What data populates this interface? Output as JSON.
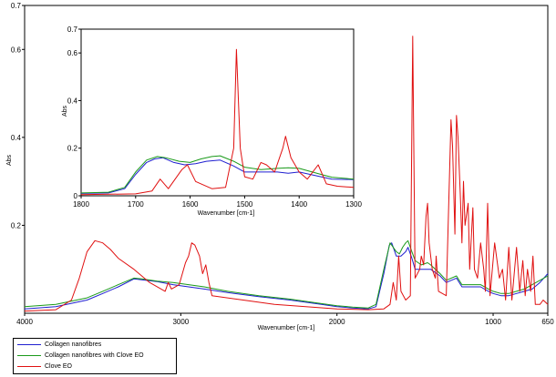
{
  "chart_data": [
    {
      "id": "main",
      "type": "line",
      "xlabel": "Wavenumber [cm-1]",
      "ylabel": "Abs",
      "xlim": [
        4000,
        650
      ],
      "ylim": [
        0,
        0.7
      ],
      "x_ticks": [
        4000,
        3000,
        2000,
        1000,
        650
      ],
      "y_ticks": [
        0.2,
        0.4,
        0.6,
        0.7
      ],
      "series": [
        {
          "name": "Collagen nanofibres",
          "color": "#1f1fd0",
          "points": [
            [
              4000,
              0.01
            ],
            [
              3800,
              0.015
            ],
            [
              3600,
              0.03
            ],
            [
              3500,
              0.045
            ],
            [
              3400,
              0.06
            ],
            [
              3300,
              0.078
            ],
            [
              3250,
              0.076
            ],
            [
              3150,
              0.072
            ],
            [
              3050,
              0.065
            ],
            [
              2950,
              0.06
            ],
            [
              2850,
              0.055
            ],
            [
              2700,
              0.047
            ],
            [
              2500,
              0.038
            ],
            [
              2300,
              0.03
            ],
            [
              2100,
              0.02
            ],
            [
              2000,
              0.015
            ],
            [
              1900,
              0.012
            ],
            [
              1800,
              0.01
            ],
            [
              1750,
              0.015
            ],
            [
              1700,
              0.09
            ],
            [
              1665,
              0.155
            ],
            [
              1650,
              0.16
            ],
            [
              1620,
              0.13
            ],
            [
              1590,
              0.13
            ],
            [
              1560,
              0.14
            ],
            [
              1545,
              0.15
            ],
            [
              1520,
              0.125
            ],
            [
              1500,
              0.1
            ],
            [
              1460,
              0.1
            ],
            [
              1400,
              0.1
            ],
            [
              1340,
              0.085
            ],
            [
              1300,
              0.07
            ],
            [
              1235,
              0.08
            ],
            [
              1200,
              0.06
            ],
            [
              1080,
              0.06
            ],
            [
              1030,
              0.05
            ],
            [
              1000,
              0.045
            ],
            [
              950,
              0.04
            ],
            [
              900,
              0.04
            ],
            [
              850,
              0.045
            ],
            [
              800,
              0.05
            ],
            [
              750,
              0.055
            ],
            [
              700,
              0.07
            ],
            [
              650,
              0.09
            ]
          ]
        },
        {
          "name": "Collagen nanofibres with Clove EO",
          "color": "#1a9a1a",
          "points": [
            [
              4000,
              0.015
            ],
            [
              3800,
              0.02
            ],
            [
              3600,
              0.035
            ],
            [
              3500,
              0.05
            ],
            [
              3400,
              0.065
            ],
            [
              3300,
              0.08
            ],
            [
              3250,
              0.078
            ],
            [
              3150,
              0.073
            ],
            [
              3050,
              0.07
            ],
            [
              2950,
              0.065
            ],
            [
              2850,
              0.06
            ],
            [
              2700,
              0.05
            ],
            [
              2500,
              0.04
            ],
            [
              2300,
              0.032
            ],
            [
              2100,
              0.022
            ],
            [
              2000,
              0.017
            ],
            [
              1900,
              0.014
            ],
            [
              1800,
              0.012
            ],
            [
              1750,
              0.02
            ],
            [
              1700,
              0.1
            ],
            [
              1660,
              0.16
            ],
            [
              1650,
              0.155
            ],
            [
              1620,
              0.14
            ],
            [
              1600,
              0.135
            ],
            [
              1580,
              0.15
            ],
            [
              1560,
              0.16
            ],
            [
              1545,
              0.165
            ],
            [
              1520,
              0.14
            ],
            [
              1500,
              0.12
            ],
            [
              1460,
              0.11
            ],
            [
              1420,
              0.115
            ],
            [
              1400,
              0.11
            ],
            [
              1340,
              0.09
            ],
            [
              1300,
              0.075
            ],
            [
              1235,
              0.085
            ],
            [
              1200,
              0.065
            ],
            [
              1080,
              0.065
            ],
            [
              1030,
              0.055
            ],
            [
              1000,
              0.05
            ],
            [
              950,
              0.045
            ],
            [
              900,
              0.045
            ],
            [
              850,
              0.05
            ],
            [
              800,
              0.055
            ],
            [
              750,
              0.065
            ],
            [
              700,
              0.075
            ],
            [
              650,
              0.085
            ]
          ]
        },
        {
          "name": "Clove EO",
          "color": "#e01010",
          "points": [
            [
              4000,
              0.005
            ],
            [
              3800,
              0.008
            ],
            [
              3700,
              0.03
            ],
            [
              3650,
              0.08
            ],
            [
              3600,
              0.14
            ],
            [
              3550,
              0.165
            ],
            [
              3500,
              0.16
            ],
            [
              3450,
              0.145
            ],
            [
              3400,
              0.125
            ],
            [
              3300,
              0.1
            ],
            [
              3200,
              0.07
            ],
            [
              3100,
              0.05
            ],
            [
              3080,
              0.07
            ],
            [
              3060,
              0.055
            ],
            [
              3010,
              0.065
            ],
            [
              2970,
              0.115
            ],
            [
              2950,
              0.13
            ],
            [
              2930,
              0.16
            ],
            [
              2910,
              0.155
            ],
            [
              2880,
              0.13
            ],
            [
              2860,
              0.09
            ],
            [
              2840,
              0.11
            ],
            [
              2820,
              0.07
            ],
            [
              2800,
              0.04
            ],
            [
              2600,
              0.03
            ],
            [
              2400,
              0.02
            ],
            [
              2200,
              0.015
            ],
            [
              2000,
              0.01
            ],
            [
              1800,
              0.008
            ],
            [
              1700,
              0.01
            ],
            [
              1660,
              0.02
            ],
            [
              1640,
              0.07
            ],
            [
              1620,
              0.03
            ],
            [
              1605,
              0.13
            ],
            [
              1590,
              0.05
            ],
            [
              1560,
              0.03
            ],
            [
              1530,
              0.04
            ],
            [
              1515,
              0.63
            ],
            [
              1500,
              0.08
            ],
            [
              1470,
              0.1
            ],
            [
              1460,
              0.13
            ],
            [
              1445,
              0.11
            ],
            [
              1430,
              0.22
            ],
            [
              1420,
              0.25
            ],
            [
              1410,
              0.16
            ],
            [
              1390,
              0.1
            ],
            [
              1370,
              0.08
            ],
            [
              1365,
              0.13
            ],
            [
              1350,
              0.05
            ],
            [
              1300,
              0.04
            ],
            [
              1270,
              0.44
            ],
            [
              1260,
              0.38
            ],
            [
              1245,
              0.18
            ],
            [
              1235,
              0.45
            ],
            [
              1225,
              0.4
            ],
            [
              1210,
              0.27
            ],
            [
              1200,
              0.16
            ],
            [
              1190,
              0.3
            ],
            [
              1180,
              0.2
            ],
            [
              1160,
              0.25
            ],
            [
              1150,
              0.1
            ],
            [
              1130,
              0.24
            ],
            [
              1120,
              0.1
            ],
            [
              1100,
              0.08
            ],
            [
              1080,
              0.16
            ],
            [
              1060,
              0.1
            ],
            [
              1050,
              0.05
            ],
            [
              1035,
              0.25
            ],
            [
              1020,
              0.04
            ],
            [
              990,
              0.16
            ],
            [
              960,
              0.08
            ],
            [
              940,
              0.1
            ],
            [
              920,
              0.03
            ],
            [
              900,
              0.15
            ],
            [
              880,
              0.03
            ],
            [
              850,
              0.15
            ],
            [
              830,
              0.05
            ],
            [
              810,
              0.12
            ],
            [
              795,
              0.04
            ],
            [
              780,
              0.1
            ],
            [
              760,
              0.05
            ],
            [
              745,
              0.13
            ],
            [
              730,
              0.02
            ],
            [
              700,
              0.02
            ],
            [
              680,
              0.03
            ],
            [
              650,
              0.02
            ]
          ]
        }
      ]
    },
    {
      "id": "inset",
      "type": "line",
      "xlabel": "Wavenumber [cm-1]",
      "ylabel": "Abs",
      "xlim": [
        1800,
        1300
      ],
      "ylim": [
        0,
        0.7
      ],
      "x_ticks": [
        1800,
        1700,
        1600,
        1500,
        1400,
        1300
      ],
      "y_ticks": [
        0,
        0.2,
        0.4,
        0.6,
        0.7
      ],
      "series": [
        {
          "name": "Collagen nanofibres",
          "color": "#1f1fd0",
          "points": [
            [
              1800,
              0.01
            ],
            [
              1750,
              0.012
            ],
            [
              1720,
              0.03
            ],
            [
              1700,
              0.09
            ],
            [
              1680,
              0.14
            ],
            [
              1665,
              0.155
            ],
            [
              1650,
              0.16
            ],
            [
              1630,
              0.14
            ],
            [
              1610,
              0.13
            ],
            [
              1590,
              0.135
            ],
            [
              1570,
              0.145
            ],
            [
              1545,
              0.15
            ],
            [
              1520,
              0.125
            ],
            [
              1500,
              0.1
            ],
            [
              1470,
              0.1
            ],
            [
              1440,
              0.1
            ],
            [
              1420,
              0.095
            ],
            [
              1400,
              0.1
            ],
            [
              1360,
              0.08
            ],
            [
              1340,
              0.07
            ],
            [
              1300,
              0.068
            ]
          ]
        },
        {
          "name": "Collagen nanofibres with Clove EO",
          "color": "#1a9a1a",
          "points": [
            [
              1800,
              0.012
            ],
            [
              1750,
              0.015
            ],
            [
              1720,
              0.035
            ],
            [
              1700,
              0.1
            ],
            [
              1680,
              0.15
            ],
            [
              1660,
              0.165
            ],
            [
              1645,
              0.16
            ],
            [
              1620,
              0.145
            ],
            [
              1600,
              0.14
            ],
            [
              1580,
              0.155
            ],
            [
              1560,
              0.165
            ],
            [
              1545,
              0.168
            ],
            [
              1520,
              0.145
            ],
            [
              1500,
              0.12
            ],
            [
              1470,
              0.11
            ],
            [
              1440,
              0.115
            ],
            [
              1420,
              0.118
            ],
            [
              1400,
              0.115
            ],
            [
              1360,
              0.09
            ],
            [
              1340,
              0.078
            ],
            [
              1300,
              0.07
            ]
          ]
        },
        {
          "name": "Clove EO",
          "color": "#e01010",
          "points": [
            [
              1800,
              0.005
            ],
            [
              1700,
              0.008
            ],
            [
              1670,
              0.02
            ],
            [
              1655,
              0.07
            ],
            [
              1640,
              0.03
            ],
            [
              1615,
              0.11
            ],
            [
              1605,
              0.13
            ],
            [
              1590,
              0.06
            ],
            [
              1560,
              0.03
            ],
            [
              1535,
              0.035
            ],
            [
              1520,
              0.2
            ],
            [
              1515,
              0.615
            ],
            [
              1508,
              0.2
            ],
            [
              1500,
              0.08
            ],
            [
              1485,
              0.07
            ],
            [
              1470,
              0.14
            ],
            [
              1460,
              0.13
            ],
            [
              1445,
              0.1
            ],
            [
              1430,
              0.2
            ],
            [
              1425,
              0.25
            ],
            [
              1415,
              0.16
            ],
            [
              1400,
              0.1
            ],
            [
              1385,
              0.07
            ],
            [
              1365,
              0.13
            ],
            [
              1350,
              0.05
            ],
            [
              1330,
              0.04
            ],
            [
              1300,
              0.035
            ]
          ]
        }
      ]
    }
  ],
  "legend": {
    "items": [
      {
        "label": "Collagen nanofibres",
        "color": "#1f1fd0"
      },
      {
        "label": "Collagen nanofibres with Clove EO",
        "color": "#1a9a1a"
      },
      {
        "label": "Clove EO",
        "color": "#e01010"
      }
    ]
  }
}
